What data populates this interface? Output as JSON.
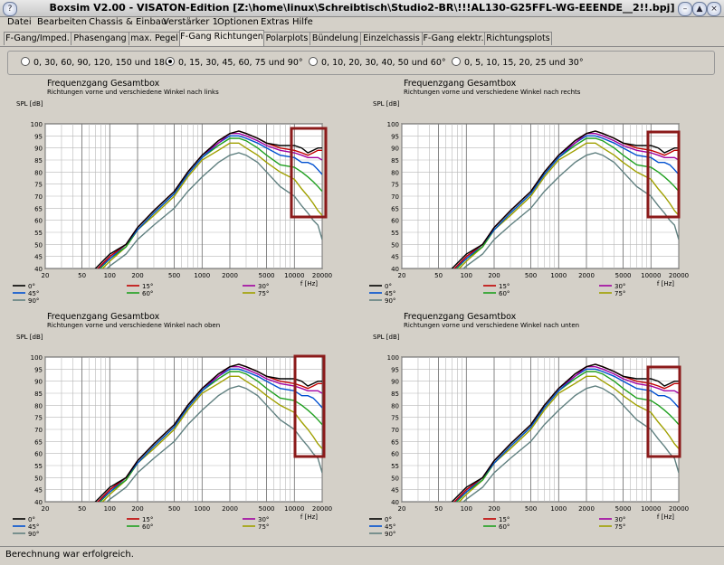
{
  "window": {
    "title": "Boxsim V2.00 - VISATON-Edition [Z:\\home\\linux\\Schreibtisch\\Studio2-BR\\!!!AL130-G25FFL-WG-EEENDE__2!!.bpj]",
    "minimize": "–",
    "maximize": "▲",
    "close": "×"
  },
  "menu": [
    "Datei",
    "Bearbeiten",
    "Chassis & Einbau",
    "Verstärker 1",
    "Optionen",
    "Extras",
    "Hilfe"
  ],
  "tabs": [
    "F-Gang/Imped.",
    "Phasengang",
    "max. Pegel",
    "F-Gang Richtungen",
    "Polarplots",
    "Bündelung",
    "Einzelchassis",
    "F-Gang elektr.",
    "Richtungsplots"
  ],
  "active_tab": 3,
  "angle_options": [
    "0, 30, 60, 90, 120, 150 und 180°",
    "0, 15, 30, 45, 60, 75 und 90°",
    "0, 10, 20, 30, 40, 50 und 60°",
    "0, 5, 10, 15, 20, 25 und 30°"
  ],
  "selected_option": 1,
  "chart_data": [
    {
      "type": "line",
      "title": "Frequenzgang Gesamtbox",
      "subtitle": "Richtungen vorne und verschiedene Winkel nach links",
      "ylabel": "SPL [dB]",
      "xlabel": "f [Hz]",
      "x_scale": "log",
      "xlim": [
        20,
        20000
      ],
      "ylim": [
        40,
        100
      ],
      "grid": true,
      "legend": "bottom"
    },
    {
      "type": "line",
      "title": "Frequenzgang Gesamtbox",
      "subtitle": "Richtungen vorne und verschiedene Winkel nach rechts",
      "ylabel": "SPL [dB]",
      "xlabel": "f [Hz]",
      "x_scale": "log",
      "xlim": [
        20,
        20000
      ],
      "ylim": [
        40,
        100
      ],
      "grid": true,
      "legend": "bottom"
    },
    {
      "type": "line",
      "title": "Frequenzgang Gesamtbox",
      "subtitle": "Richtungen vorne und verschiedene Winkel nach oben",
      "ylabel": "SPL [dB]",
      "xlabel": "f [Hz]",
      "x_scale": "log",
      "xlim": [
        20,
        20000
      ],
      "ylim": [
        40,
        100
      ],
      "grid": true,
      "legend": "bottom"
    },
    {
      "type": "line",
      "title": "Frequenzgang Gesamtbox",
      "subtitle": "Richtungen vorne und verschiedene Winkel nach unten",
      "ylabel": "SPL [dB]",
      "xlabel": "f [Hz]",
      "x_scale": "log",
      "xlim": [
        20,
        20000
      ],
      "ylim": [
        40,
        100
      ],
      "grid": true,
      "legend": "bottom"
    }
  ],
  "x_ticks": [
    {
      "v": 20,
      "label": "20"
    },
    {
      "v": 50,
      "label": "50"
    },
    {
      "v": 100,
      "label": "100"
    },
    {
      "v": 200,
      "label": "200"
    },
    {
      "v": 500,
      "label": "500"
    },
    {
      "v": 1000,
      "label": "1000"
    },
    {
      "v": 2000,
      "label": "2000"
    },
    {
      "v": 5000,
      "label": "5000"
    },
    {
      "v": 10000,
      "label": "10000"
    },
    {
      "v": 20000,
      "label": "20000"
    }
  ],
  "y_ticks": [
    40,
    45,
    50,
    55,
    60,
    65,
    70,
    75,
    80,
    85,
    90,
    95,
    100
  ],
  "x_points": [
    20,
    50,
    70,
    100,
    150,
    200,
    300,
    500,
    700,
    1000,
    1500,
    2000,
    2500,
    3000,
    4000,
    5000,
    7000,
    10000,
    12000,
    14000,
    16000,
    18000,
    20000
  ],
  "series": [
    {
      "name": "0°",
      "color": "#000000",
      "values": [
        20,
        35,
        40,
        46,
        50,
        57,
        64,
        72,
        80,
        87,
        93,
        96,
        97,
        96,
        94,
        92,
        91,
        91,
        90,
        88,
        89,
        90,
        90
      ]
    },
    {
      "name": "15°",
      "color": "#c00000",
      "values": [
        20,
        34,
        39,
        45,
        50,
        57,
        64,
        72,
        80,
        87,
        93,
        96,
        97,
        96,
        94,
        92,
        90,
        89,
        88,
        87,
        88,
        89,
        89
      ]
    },
    {
      "name": "30°",
      "color": "#a000a0",
      "values": [
        20,
        34,
        39,
        45,
        50,
        57,
        64,
        72,
        80,
        87,
        92,
        96,
        96,
        95,
        93,
        91,
        89,
        88,
        87,
        86,
        86,
        86,
        85
      ]
    },
    {
      "name": "45°",
      "color": "#0050d0",
      "values": [
        20,
        33,
        39,
        44,
        50,
        56,
        63,
        71,
        79,
        86,
        92,
        95,
        95,
        94,
        92,
        90,
        87,
        86,
        84,
        84,
        83,
        81,
        79
      ]
    },
    {
      "name": "60°",
      "color": "#20a020",
      "values": [
        20,
        32,
        38,
        44,
        49,
        56,
        63,
        71,
        79,
        86,
        91,
        94,
        94,
        93,
        90,
        87,
        83,
        82,
        80,
        78,
        76,
        74,
        72
      ]
    },
    {
      "name": "75°",
      "color": "#a0a000",
      "values": [
        20,
        31,
        37,
        43,
        49,
        56,
        62,
        70,
        78,
        85,
        89,
        92,
        92,
        90,
        87,
        84,
        80,
        77,
        73,
        70,
        67,
        64,
        62
      ]
    },
    {
      "name": "90°",
      "color": "#608080",
      "values": [
        20,
        29,
        35,
        41,
        46,
        52,
        58,
        65,
        72,
        78,
        84,
        87,
        88,
        87,
        84,
        80,
        74,
        70,
        66,
        63,
        60,
        58,
        52
      ]
    }
  ],
  "highlight_box_color": "#8b1a1a"
}
